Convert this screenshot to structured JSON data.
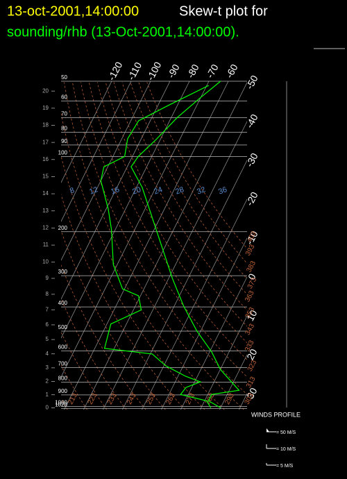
{
  "chart_data": {
    "type": "skew-t",
    "title_date": "13-oct-2001,14:00:00",
    "title": "Skew-t plot for",
    "subtitle": "sounding/rhb (13-Oct-2001,14:00:00).",
    "y_scale": "log",
    "ylim": [
      1030,
      50
    ],
    "yticks": [
      50,
      60,
      70,
      80,
      90,
      100,
      200,
      300,
      400,
      500,
      600,
      700,
      800,
      900,
      1000,
      1020
    ],
    "y2lim": [
      -0.1,
      20.6
    ],
    "y2ticks": [
      0,
      1,
      2,
      3,
      4,
      5,
      6,
      7,
      8,
      9,
      10,
      11,
      12,
      13,
      14,
      15,
      16,
      17,
      18,
      19,
      20
    ],
    "xlim": [
      -61.6,
      34.1
    ],
    "xticks": [
      -120,
      -110,
      -100,
      -90,
      -80,
      -70,
      -60,
      -50,
      -40,
      -30,
      -20,
      -10,
      0,
      10,
      20,
      30
    ],
    "dry_adiabats": [
      213,
      223,
      233,
      243,
      253,
      263,
      273,
      283,
      293,
      303,
      313,
      323,
      333,
      343,
      353,
      363,
      373,
      383,
      393,
      403
    ],
    "mixing_ratio_labels": [
      8,
      12,
      16,
      20,
      24,
      28,
      32,
      36
    ],
    "series": [
      {
        "color": "#00ff00",
        "pressure": [
          50,
          58,
          70,
          85,
          100,
          110,
          133,
          196,
          308,
          398,
          499,
          605,
          711,
          809,
          862,
          896,
          950,
          1013
        ],
        "values": [
          -64,
          -70,
          -77,
          -82,
          -87,
          -88,
          -77,
          -59,
          -38,
          -25,
          -12,
          1,
          10,
          20,
          25,
          12,
          12,
          20
        ]
      },
      {
        "color": "#00ff00",
        "pressure": [
          52,
          62,
          72,
          85,
          100,
          110,
          125,
          162,
          196,
          271,
          339,
          361,
          411,
          468,
          586,
          617,
          688,
          758,
          798,
          840,
          896,
          950,
          1013
        ],
        "values": [
          -69,
          -84,
          -96,
          -97,
          -94,
          -102,
          -100,
          -89,
          -82,
          -72,
          -61,
          -51,
          -46,
          -58,
          -55,
          -29,
          -19,
          -6,
          3,
          -3,
          -4,
          11,
          15
        ]
      }
    ],
    "wind_legend": {
      "title": "WINDS PROFILE",
      "items": [
        {
          "speed": 50,
          "label": "= 50 M/S"
        },
        {
          "speed": 10,
          "label": "= 10 M/S"
        },
        {
          "speed": 5,
          "label": "= 5 M/S"
        }
      ]
    }
  }
}
